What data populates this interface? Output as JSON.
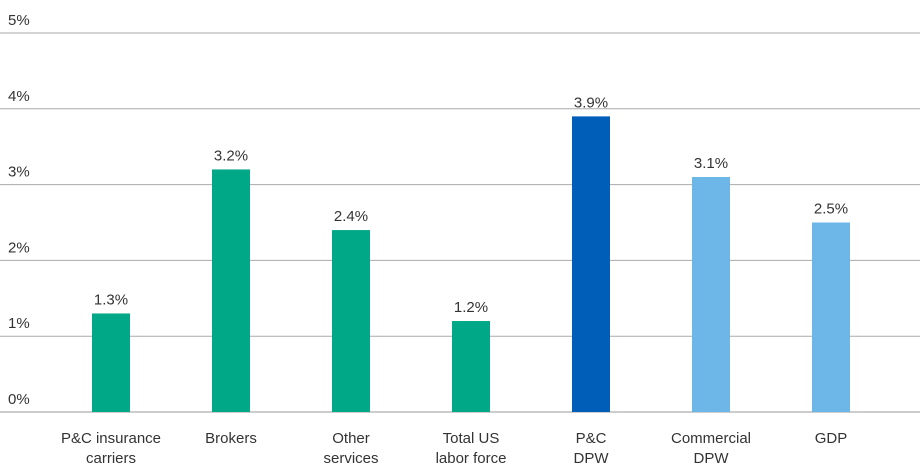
{
  "chart_data": {
    "type": "bar",
    "categories": [
      "P&C insurance\ncarriers",
      "Brokers",
      "Other\nservices",
      "Total US\nlabor force",
      "P&C\nDPW",
      "Commercial\nDPW",
      "GDP"
    ],
    "values": [
      1.3,
      3.2,
      2.4,
      1.2,
      3.9,
      3.1,
      2.5
    ],
    "value_labels": [
      "1.3%",
      "3.2%",
      "2.4%",
      "1.2%",
      "3.9%",
      "3.1%",
      "2.5%"
    ],
    "colors": [
      "#00a887",
      "#00a887",
      "#00a887",
      "#00a887",
      "#005eb8",
      "#6cb7e8",
      "#6cb7e8"
    ],
    "ylim": [
      0,
      5
    ],
    "yticks": [
      {
        "value": 0,
        "label": "0%"
      },
      {
        "value": 1,
        "label": "1%"
      },
      {
        "value": 2,
        "label": "2%"
      },
      {
        "value": 3,
        "label": "3%"
      },
      {
        "value": 4,
        "label": "4%"
      },
      {
        "value": 5,
        "label": "5%"
      }
    ],
    "grid": true
  }
}
